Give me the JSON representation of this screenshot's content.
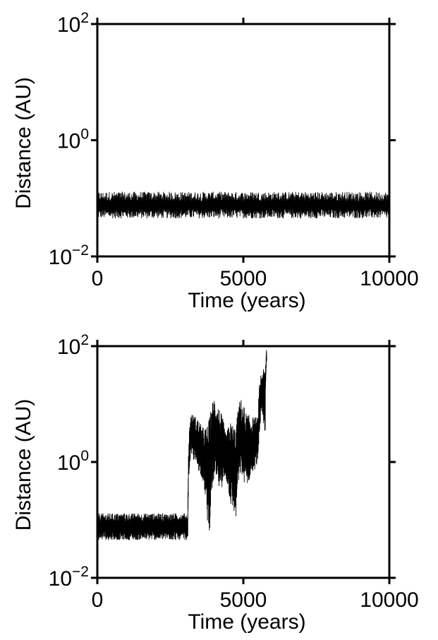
{
  "chart_data": [
    {
      "type": "line",
      "panel": "top",
      "title": "",
      "xlabel": "Time (years)",
      "ylabel": "Distance (AU)",
      "xlim": [
        0,
        10000
      ],
      "ylim": [
        0.01,
        100
      ],
      "yscale": "log",
      "xticks": [
        0,
        5000,
        10000
      ],
      "xtick_labels": [
        "0",
        "5000",
        "10000"
      ],
      "yticks": [
        0.01,
        1,
        100
      ],
      "ytick_labels": [
        {
          "base": "10",
          "exp": "−2"
        },
        {
          "base": "10",
          "exp": "0"
        },
        {
          "base": "10",
          "exp": "2"
        }
      ],
      "grid": false,
      "line_color": "#000000",
      "series": [
        {
          "x": [
            0,
            10000
          ],
          "y_low": [
            0.045,
            0.045
          ],
          "y_high": [
            0.13,
            0.13
          ]
        }
      ]
    },
    {
      "type": "line",
      "panel": "bottom",
      "title": "",
      "xlabel": "Time (years)",
      "ylabel": "Distance (AU)",
      "xlim": [
        0,
        10000
      ],
      "ylim": [
        0.01,
        100
      ],
      "yscale": "log",
      "xticks": [
        0,
        5000,
        10000
      ],
      "xtick_labels": [
        "0",
        "5000",
        "10000"
      ],
      "yticks": [
        0.01,
        1,
        100
      ],
      "ytick_labels": [
        {
          "base": "10",
          "exp": "−2"
        },
        {
          "base": "10",
          "exp": "0"
        },
        {
          "base": "10",
          "exp": "2"
        }
      ],
      "grid": false,
      "line_color": "#000000",
      "series": [
        {
          "x": [
            0,
            1000,
            2000,
            3100,
            3200,
            3400,
            3600,
            3750,
            3850,
            4000,
            4200,
            4400,
            4550,
            4750,
            4900,
            5100,
            5300,
            5500,
            5600,
            5650,
            5750,
            5800
          ],
          "y_low": [
            0.045,
            0.045,
            0.045,
            0.045,
            1.3,
            0.8,
            0.5,
            0.1,
            0.06,
            0.5,
            0.3,
            0.5,
            0.18,
            0.1,
            0.6,
            0.35,
            0.6,
            0.9,
            5,
            5,
            3,
            50
          ],
          "y_high": [
            0.13,
            0.13,
            0.13,
            0.13,
            7,
            6,
            4,
            4,
            6,
            14,
            8,
            3,
            5,
            4,
            13,
            7,
            6,
            6,
            35,
            40,
            40,
            100
          ]
        }
      ]
    }
  ]
}
